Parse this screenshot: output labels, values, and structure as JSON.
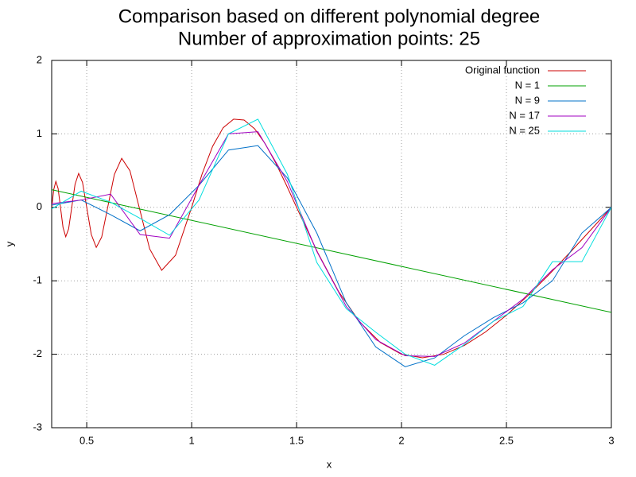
{
  "chart_data": {
    "type": "line",
    "title": "Comparison based on different polynomial degree",
    "subtitle": "Number of approximation points: 25",
    "x_label": "x",
    "y_label": "y",
    "xlim": [
      0.333,
      3
    ],
    "ylim": [
      -3,
      2
    ],
    "xticks": [
      0.5,
      1,
      1.5,
      2,
      2.5,
      3
    ],
    "yticks": [
      -3,
      -2,
      -1,
      0,
      1,
      2
    ],
    "grid": true,
    "legend": "top-right",
    "series": [
      {
        "name": "Original function",
        "color": "#cc0000",
        "x": [
          0.3333,
          0.3429,
          0.3529,
          0.3636,
          0.375,
          0.3871,
          0.4,
          0.4138,
          0.4286,
          0.4444,
          0.4615,
          0.48,
          0.5,
          0.5217,
          0.5455,
          0.5714,
          0.6,
          0.6316,
          0.6667,
          0.7059,
          0.75,
          0.8,
          0.8571,
          0.9231,
          1,
          1.05,
          1.1,
          1.15,
          1.2,
          1.25,
          1.3,
          1.35,
          1.4,
          1.45,
          1.5,
          1.6,
          1.7,
          1.8,
          1.9,
          2,
          2.1,
          2.2,
          2.3,
          2.4,
          2.5,
          2.6,
          2.7,
          2.8,
          2.9,
          3
        ],
        "values": [
          0,
          0.2424,
          0.3529,
          0.2571,
          0,
          -0.2737,
          -0.4,
          -0.2926,
          0,
          0.3143,
          0.4615,
          0.3394,
          0,
          -0.3689,
          -0.5455,
          -0.4041,
          0,
          0.4466,
          0.6667,
          0.4991,
          0,
          -0.5657,
          -0.8571,
          -0.6527,
          0,
          0.4556,
          0.8313,
          1.0835,
          1.2,
          1.1889,
          1.07,
          0.8678,
          0.6075,
          0.3118,
          0,
          -0.6123,
          -1.1458,
          -1.5588,
          -1.8419,
          -2,
          -2.0473,
          -2.0011,
          -1.8791,
          -1.6971,
          -1.4695,
          -1.2082,
          -0.9234,
          -0.623,
          -0.3135,
          0
        ]
      },
      {
        "name": "N = 1",
        "color": "#00a000",
        "x": [
          0.3333,
          3
        ],
        "values": [
          0.24,
          -1.43
        ]
      },
      {
        "name": "N = 9",
        "color": "#0070c8",
        "x": [
          0.3333,
          0.4737,
          0.614,
          0.7544,
          0.8947,
          1.0351,
          1.1754,
          1.3158,
          1.4561,
          1.5965,
          1.7368,
          1.8772,
          2.0175,
          2.1579,
          2.2982,
          2.4386,
          2.5789,
          2.7193,
          2.8596,
          3
        ],
        "values": [
          0.03,
          0.1,
          -0.1,
          -0.32,
          -0.1,
          0.3,
          0.78,
          0.84,
          0.4,
          -0.35,
          -1.3,
          -1.9,
          -2.17,
          -2.05,
          -1.75,
          -1.5,
          -1.3,
          -1.0,
          -0.35,
          0
        ]
      },
      {
        "name": "N = 17",
        "color": "#a000c0",
        "x": [
          0.3333,
          0.4737,
          0.614,
          0.7544,
          0.8947,
          1.0351,
          1.1754,
          1.3158,
          1.4561,
          1.5965,
          1.7368,
          1.8772,
          2.0175,
          2.1579,
          2.2982,
          2.4386,
          2.5789,
          2.7193,
          2.8596,
          3
        ],
        "values": [
          0.05,
          0.1,
          0.18,
          -0.37,
          -0.42,
          0.3,
          1.0,
          1.03,
          0.35,
          -0.6,
          -1.35,
          -1.8,
          -2.02,
          -2.03,
          -1.85,
          -1.55,
          -1.25,
          -0.85,
          -0.55,
          0
        ]
      },
      {
        "name": "N = 25",
        "color": "#00dede",
        "x": [
          0.3333,
          0.4737,
          0.614,
          0.7544,
          0.8947,
          1.0351,
          1.1754,
          1.3158,
          1.4561,
          1.5965,
          1.7368,
          1.8772,
          2.0175,
          2.1579,
          2.2982,
          2.4386,
          2.5789,
          2.7193,
          2.8596,
          3
        ],
        "values": [
          -0.02,
          0.22,
          0.07,
          -0.15,
          -0.38,
          0.1,
          1.0,
          1.2,
          0.45,
          -0.75,
          -1.38,
          -1.7,
          -2.0,
          -2.15,
          -1.87,
          -1.55,
          -1.35,
          -0.74,
          -0.74,
          0
        ]
      }
    ]
  }
}
